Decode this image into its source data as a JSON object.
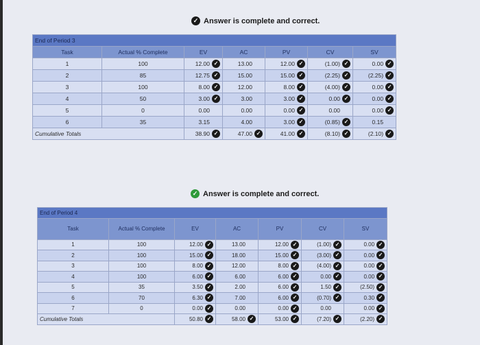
{
  "panel1": {
    "banner": "Answer is complete and correct.",
    "title": "End of Period 3",
    "headers": [
      "Task",
      "Actual % Complete",
      "EV",
      "AC",
      "PV",
      "CV",
      "SV"
    ],
    "rows": [
      {
        "task": "1",
        "pct": "100",
        "ev": "12.00",
        "ac": "13.00",
        "pv": "12.00",
        "cv": "(1.00)",
        "sv": "0.00"
      },
      {
        "task": "2",
        "pct": "85",
        "ev": "12.75",
        "ac": "15.00",
        "pv": "15.00",
        "cv": "(2.25)",
        "sv": "(2.25)"
      },
      {
        "task": "3",
        "pct": "100",
        "ev": "8.00",
        "ac": "12.00",
        "pv": "8.00",
        "cv": "(4.00)",
        "sv": "0.00"
      },
      {
        "task": "4",
        "pct": "50",
        "ev": "3.00",
        "ac": "3.00",
        "pv": "3.00",
        "cv": "0.00",
        "sv": "0.00"
      },
      {
        "task": "5",
        "pct": "0",
        "ev": "0.00",
        "ac": "0.00",
        "pv": "0.00",
        "cv": "0.00",
        "sv": "0.00"
      },
      {
        "task": "6",
        "pct": "35",
        "ev": "3.15",
        "ac": "4.00",
        "pv": "3.00",
        "cv": "(0.85)",
        "sv": "0.15"
      }
    ],
    "totals": {
      "label": "Cumulative Totals",
      "ev": "38.90",
      "ac": "47.00",
      "pv": "41.00",
      "cv": "(8.10)",
      "sv": "(2.10)"
    }
  },
  "panel2": {
    "banner": "Answer is complete and correct.",
    "title": "End of Period 4",
    "headers": [
      "Task",
      "Actual % Complete",
      "EV",
      "AC",
      "PV",
      "CV",
      "SV"
    ],
    "rows": [
      {
        "task": "1",
        "pct": "100",
        "ev": "12.00",
        "ac": "13.00",
        "pv": "12.00",
        "cv": "(1.00)",
        "sv": "0.00"
      },
      {
        "task": "2",
        "pct": "100",
        "ev": "15.00",
        "ac": "18.00",
        "pv": "15.00",
        "cv": "(3.00)",
        "sv": "0.00"
      },
      {
        "task": "3",
        "pct": "100",
        "ev": "8.00",
        "ac": "12.00",
        "pv": "8.00",
        "cv": "(4.00)",
        "sv": "0.00"
      },
      {
        "task": "4",
        "pct": "100",
        "ev": "6.00",
        "ac": "6.00",
        "pv": "6.00",
        "cv": "0.00",
        "sv": "0.00"
      },
      {
        "task": "5",
        "pct": "35",
        "ev": "3.50",
        "ac": "2.00",
        "pv": "6.00",
        "cv": "1.50",
        "sv": "(2.50)"
      },
      {
        "task": "6",
        "pct": "70",
        "ev": "6.30",
        "ac": "7.00",
        "pv": "6.00",
        "cv": "(0.70)",
        "sv": "0.30"
      },
      {
        "task": "7",
        "pct": "0",
        "ev": "0.00",
        "ac": "0.00",
        "pv": "0.00",
        "cv": "0.00",
        "sv": "0.00"
      }
    ],
    "totals": {
      "label": "Cumulative Totals",
      "ev": "50.80",
      "ac": "58.00",
      "pv": "53.00",
      "cv": "(7.20)",
      "sv": "(2.20)"
    }
  },
  "colors": {
    "header": "#7d95cf",
    "title": "#5b78c4",
    "row": "#d8dff2",
    "check": "#1a1a1a",
    "banner_check2": "#2e9a3a"
  },
  "icons": {
    "correct": "check-circle-icon"
  }
}
